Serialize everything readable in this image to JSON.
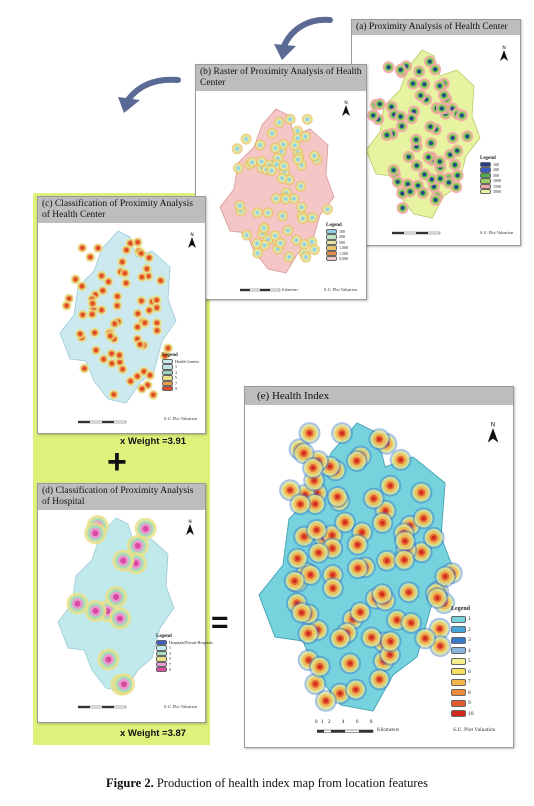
{
  "panels": {
    "a": {
      "title": "(a) Proximity Analysis of Health Center",
      "north": "N",
      "legend_title": "Legend",
      "legend_items": [
        "100",
        "200",
        "500",
        "1000",
        "1500",
        "5000"
      ],
      "credit": "S.U. Plot Valuation"
    },
    "b": {
      "title": "(b) Raster of Proximity Analysis of Health Center",
      "north": "N",
      "legend_title": "Legend",
      "legend_items": [
        "100",
        "200",
        "500",
        "1,000",
        "1,500",
        "5,000"
      ],
      "scale_unit": "Kilometers",
      "credit": "S.U. Plot Valuation"
    },
    "c": {
      "title": "(c) Classification of Proximity Analysis of Health Center",
      "north": "N",
      "legend_title": "Legend",
      "legend_items": [
        "Health Centers",
        "1",
        "3",
        "5",
        "7",
        "9"
      ],
      "credit": "S.U. Plot Valuation",
      "weight": "x Weight =3.91"
    },
    "d": {
      "title": "(d) Classification of Proximity Analysis of Hospital",
      "north": "N",
      "legend_title": "Legend",
      "legend_items": [
        "Hospitals/Private Hospitals",
        "1",
        "3",
        "5",
        "7",
        "9"
      ],
      "credit": "S.U. Plot Valuation",
      "weight": "x Weight =3.87"
    },
    "e": {
      "title": "(e)  Health Index",
      "north": "N",
      "legend_title": "Legend",
      "legend_items": [
        "1",
        "2",
        "3",
        "4",
        "5",
        "6",
        "7",
        "8",
        "9",
        "10"
      ],
      "scale_ticks": [
        "0",
        "1",
        "2",
        "4",
        "6",
        "8"
      ],
      "scale_unit": "Kilometers",
      "credit": "S.U. Plot Valuation"
    }
  },
  "operators": {
    "plus": "+",
    "equals": "="
  },
  "caption": {
    "label": "Figure 2.",
    "text": " Production of health index map from location features"
  },
  "colors": {
    "highlight_bg": "#dff17b",
    "arrow": "#5a6a95",
    "legend_a": [
      "#2b3f8f",
      "#3b5cc5",
      "#4caf50",
      "#9ccc65",
      "#f4a6a6",
      "#e8f3a2"
    ],
    "legend_b": [
      "#8fd0e8",
      "#bfe3c2",
      "#e6e6a0",
      "#e7c46b",
      "#e48a4c",
      "#f4c6c6"
    ],
    "legend_c": [
      "#cce9f0",
      "#bfe5e5",
      "#9bd3c3",
      "#e6e08a",
      "#e9a04a",
      "#e04a2a"
    ],
    "legend_d": [
      "#3a5fc0",
      "#bfe9ea",
      "#a6dcb8",
      "#e6e18a",
      "#e89ad1",
      "#d94aa0"
    ],
    "legend_e": [
      "#76d3dd",
      "#4aa6d8",
      "#3b79c9",
      "#8ab6e0",
      "#f3ef8a",
      "#f7df5f",
      "#f3b44a",
      "#ee8a3a",
      "#e45a2f",
      "#d12a1f"
    ]
  }
}
